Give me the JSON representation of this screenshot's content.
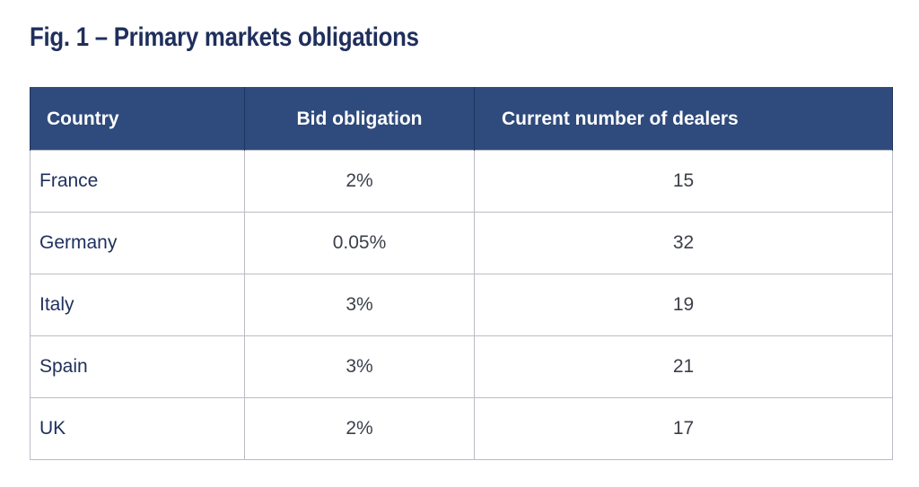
{
  "chart_data": {
    "type": "table",
    "title": "Fig. 1 – Primary markets obligations",
    "columns": [
      "Country",
      "Bid obligation",
      "Current number of dealers"
    ],
    "rows": [
      [
        "France",
        "2%",
        "15"
      ],
      [
        "Germany",
        "0.05%",
        "32"
      ],
      [
        "Italy",
        "3%",
        "19"
      ],
      [
        "Spain",
        "3%",
        "21"
      ],
      [
        "UK",
        "2%",
        "17"
      ]
    ]
  },
  "colors": {
    "header_background": "#2f4a7c",
    "header_text": "#ffffff",
    "title_text": "#1f2f5c",
    "grid_lines": "#b9bcc4"
  }
}
